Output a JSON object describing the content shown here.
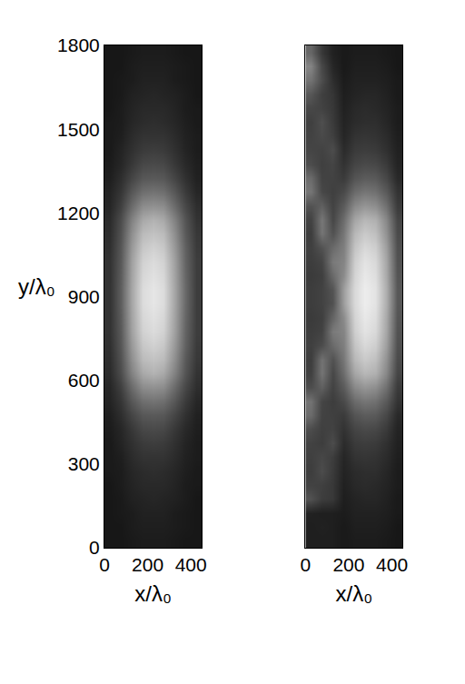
{
  "chart_data": [
    {
      "type": "heatmap",
      "x_label": "x/λ₀",
      "y_label": "y/λ₀",
      "xlim": [
        0,
        450
      ],
      "ylim": [
        0,
        1800
      ],
      "xticks": [
        0,
        200,
        400
      ],
      "yticks": [
        0,
        300,
        600,
        900,
        1200,
        1500,
        1800
      ],
      "zlim": [
        0,
        1
      ],
      "x": [
        25,
        75,
        125,
        175,
        225,
        275,
        325,
        375,
        425
      ],
      "y": [
        25,
        75,
        125,
        175,
        225,
        275,
        325,
        375,
        425,
        475,
        525,
        575,
        625,
        675,
        725,
        775,
        825,
        875,
        925,
        975,
        1025,
        1075,
        1125,
        1175,
        1225,
        1275,
        1325,
        1375,
        1425,
        1475,
        1525,
        1575,
        1625,
        1675,
        1725,
        1775
      ],
      "z": [
        [
          0.09,
          0.09,
          0.1,
          0.11,
          0.11,
          0.11,
          0.1,
          0.09,
          0.09
        ],
        [
          0.09,
          0.09,
          0.11,
          0.12,
          0.12,
          0.12,
          0.11,
          0.1,
          0.09
        ],
        [
          0.09,
          0.1,
          0.11,
          0.13,
          0.13,
          0.13,
          0.11,
          0.1,
          0.09
        ],
        [
          0.09,
          0.1,
          0.13,
          0.14,
          0.15,
          0.14,
          0.13,
          0.11,
          0.09
        ],
        [
          0.09,
          0.11,
          0.14,
          0.16,
          0.16,
          0.16,
          0.14,
          0.11,
          0.1
        ],
        [
          0.1,
          0.11,
          0.15,
          0.17,
          0.18,
          0.17,
          0.15,
          0.12,
          0.1
        ],
        [
          0.1,
          0.12,
          0.17,
          0.2,
          0.2,
          0.2,
          0.17,
          0.13,
          0.11
        ],
        [
          0.1,
          0.14,
          0.19,
          0.23,
          0.24,
          0.23,
          0.19,
          0.14,
          0.11
        ],
        [
          0.11,
          0.15,
          0.22,
          0.28,
          0.29,
          0.28,
          0.22,
          0.16,
          0.12
        ],
        [
          0.12,
          0.18,
          0.27,
          0.34,
          0.35,
          0.34,
          0.27,
          0.19,
          0.13
        ],
        [
          0.14,
          0.21,
          0.34,
          0.43,
          0.45,
          0.43,
          0.34,
          0.23,
          0.15
        ],
        [
          0.15,
          0.25,
          0.42,
          0.55,
          0.57,
          0.55,
          0.42,
          0.28,
          0.18
        ],
        [
          0.17,
          0.3,
          0.51,
          0.66,
          0.7,
          0.66,
          0.51,
          0.33,
          0.2
        ],
        [
          0.18,
          0.32,
          0.56,
          0.73,
          0.76,
          0.73,
          0.56,
          0.35,
          0.22
        ],
        [
          0.19,
          0.34,
          0.6,
          0.78,
          0.82,
          0.78,
          0.6,
          0.38,
          0.23
        ],
        [
          0.2,
          0.35,
          0.63,
          0.82,
          0.86,
          0.82,
          0.63,
          0.39,
          0.24
        ],
        [
          0.2,
          0.36,
          0.64,
          0.84,
          0.88,
          0.84,
          0.64,
          0.4,
          0.24
        ],
        [
          0.2,
          0.37,
          0.65,
          0.86,
          0.9,
          0.86,
          0.65,
          0.41,
          0.24
        ],
        [
          0.2,
          0.37,
          0.65,
          0.86,
          0.9,
          0.86,
          0.65,
          0.41,
          0.24
        ],
        [
          0.2,
          0.36,
          0.64,
          0.84,
          0.88,
          0.84,
          0.64,
          0.4,
          0.24
        ],
        [
          0.2,
          0.35,
          0.63,
          0.82,
          0.86,
          0.82,
          0.63,
          0.39,
          0.24
        ],
        [
          0.19,
          0.34,
          0.6,
          0.78,
          0.82,
          0.78,
          0.6,
          0.38,
          0.23
        ],
        [
          0.18,
          0.32,
          0.56,
          0.73,
          0.76,
          0.73,
          0.56,
          0.35,
          0.22
        ],
        [
          0.17,
          0.3,
          0.51,
          0.66,
          0.7,
          0.66,
          0.51,
          0.33,
          0.2
        ],
        [
          0.15,
          0.25,
          0.42,
          0.55,
          0.57,
          0.55,
          0.42,
          0.28,
          0.18
        ],
        [
          0.14,
          0.21,
          0.34,
          0.43,
          0.45,
          0.43,
          0.34,
          0.23,
          0.15
        ],
        [
          0.12,
          0.18,
          0.27,
          0.34,
          0.35,
          0.34,
          0.27,
          0.19,
          0.13
        ],
        [
          0.11,
          0.15,
          0.22,
          0.28,
          0.29,
          0.28,
          0.22,
          0.16,
          0.12
        ],
        [
          0.1,
          0.14,
          0.19,
          0.23,
          0.24,
          0.23,
          0.19,
          0.14,
          0.11
        ],
        [
          0.1,
          0.12,
          0.17,
          0.2,
          0.2,
          0.2,
          0.17,
          0.13,
          0.11
        ],
        [
          0.1,
          0.11,
          0.15,
          0.17,
          0.18,
          0.17,
          0.15,
          0.12,
          0.1
        ],
        [
          0.09,
          0.11,
          0.14,
          0.16,
          0.16,
          0.16,
          0.14,
          0.11,
          0.1
        ],
        [
          0.09,
          0.1,
          0.13,
          0.14,
          0.15,
          0.14,
          0.13,
          0.11,
          0.09
        ],
        [
          0.09,
          0.1,
          0.11,
          0.13,
          0.13,
          0.13,
          0.11,
          0.1,
          0.09
        ],
        [
          0.09,
          0.09,
          0.11,
          0.12,
          0.12,
          0.12,
          0.11,
          0.1,
          0.09
        ],
        [
          0.09,
          0.09,
          0.1,
          0.11,
          0.11,
          0.11,
          0.1,
          0.09,
          0.09
        ]
      ]
    },
    {
      "type": "heatmap",
      "x_label": "x/λ₀",
      "tick_labels": "x",
      "xlim": [
        0,
        450
      ],
      "ylim": [
        0,
        1800
      ],
      "xticks": [
        0,
        200,
        400
      ],
      "zlim": [
        0,
        1
      ],
      "x": [
        25,
        75,
        125,
        175,
        225,
        275,
        325,
        375,
        425
      ],
      "y": [
        25,
        75,
        125,
        175,
        225,
        275,
        325,
        375,
        425,
        475,
        525,
        575,
        625,
        675,
        725,
        775,
        825,
        875,
        925,
        975,
        1025,
        1075,
        1125,
        1175,
        1225,
        1275,
        1325,
        1375,
        1425,
        1475,
        1525,
        1575,
        1625,
        1675,
        1725,
        1775
      ],
      "z": [
        [
          0.12,
          0.12,
          0.12,
          0.1,
          0.11,
          0.11,
          0.11,
          0.1,
          0.09
        ],
        [
          0.12,
          0.13,
          0.12,
          0.1,
          0.12,
          0.12,
          0.12,
          0.11,
          0.09
        ],
        [
          0.13,
          0.12,
          0.12,
          0.11,
          0.13,
          0.13,
          0.13,
          0.12,
          0.1
        ],
        [
          0.32,
          0.24,
          0.22,
          0.12,
          0.14,
          0.15,
          0.15,
          0.13,
          0.1
        ],
        [
          0.26,
          0.25,
          0.22,
          0.13,
          0.16,
          0.17,
          0.16,
          0.14,
          0.11
        ],
        [
          0.24,
          0.3,
          0.23,
          0.14,
          0.17,
          0.18,
          0.18,
          0.15,
          0.11
        ],
        [
          0.25,
          0.28,
          0.24,
          0.15,
          0.2,
          0.21,
          0.2,
          0.17,
          0.12
        ],
        [
          0.26,
          0.24,
          0.3,
          0.17,
          0.23,
          0.24,
          0.23,
          0.19,
          0.13
        ],
        [
          0.3,
          0.25,
          0.26,
          0.2,
          0.27,
          0.29,
          0.28,
          0.23,
          0.14
        ],
        [
          0.42,
          0.26,
          0.25,
          0.23,
          0.33,
          0.36,
          0.35,
          0.28,
          0.16
        ],
        [
          0.45,
          0.27,
          0.24,
          0.29,
          0.42,
          0.46,
          0.44,
          0.35,
          0.2
        ],
        [
          0.3,
          0.38,
          0.26,
          0.36,
          0.54,
          0.59,
          0.56,
          0.44,
          0.23
        ],
        [
          0.25,
          0.46,
          0.28,
          0.43,
          0.65,
          0.72,
          0.69,
          0.53,
          0.27
        ],
        [
          0.24,
          0.45,
          0.32,
          0.47,
          0.72,
          0.79,
          0.75,
          0.57,
          0.29
        ],
        [
          0.25,
          0.3,
          0.42,
          0.5,
          0.77,
          0.85,
          0.81,
          0.62,
          0.31
        ],
        [
          0.24,
          0.26,
          0.48,
          0.52,
          0.81,
          0.89,
          0.85,
          0.65,
          0.32
        ],
        [
          0.23,
          0.25,
          0.4,
          0.55,
          0.83,
          0.91,
          0.87,
          0.66,
          0.33
        ],
        [
          0.24,
          0.26,
          0.32,
          0.62,
          0.85,
          0.93,
          0.89,
          0.68,
          0.34
        ],
        [
          0.24,
          0.26,
          0.33,
          0.62,
          0.85,
          0.93,
          0.89,
          0.68,
          0.34
        ],
        [
          0.23,
          0.25,
          0.42,
          0.55,
          0.83,
          0.91,
          0.87,
          0.66,
          0.33
        ],
        [
          0.24,
          0.27,
          0.48,
          0.52,
          0.81,
          0.89,
          0.85,
          0.65,
          0.32
        ],
        [
          0.25,
          0.32,
          0.42,
          0.5,
          0.77,
          0.85,
          0.81,
          0.62,
          0.31
        ],
        [
          0.24,
          0.46,
          0.32,
          0.47,
          0.72,
          0.79,
          0.75,
          0.57,
          0.29
        ],
        [
          0.26,
          0.47,
          0.28,
          0.43,
          0.65,
          0.72,
          0.69,
          0.53,
          0.27
        ],
        [
          0.32,
          0.38,
          0.26,
          0.36,
          0.54,
          0.59,
          0.56,
          0.44,
          0.23
        ],
        [
          0.46,
          0.28,
          0.25,
          0.29,
          0.42,
          0.46,
          0.44,
          0.35,
          0.2
        ],
        [
          0.42,
          0.26,
          0.26,
          0.23,
          0.33,
          0.36,
          0.35,
          0.28,
          0.16
        ],
        [
          0.3,
          0.25,
          0.27,
          0.2,
          0.27,
          0.29,
          0.28,
          0.23,
          0.14
        ],
        [
          0.27,
          0.26,
          0.3,
          0.17,
          0.23,
          0.24,
          0.23,
          0.19,
          0.13
        ],
        [
          0.26,
          0.29,
          0.25,
          0.15,
          0.2,
          0.21,
          0.2,
          0.17,
          0.12
        ],
        [
          0.25,
          0.31,
          0.23,
          0.14,
          0.17,
          0.18,
          0.18,
          0.15,
          0.11
        ],
        [
          0.28,
          0.26,
          0.22,
          0.13,
          0.16,
          0.17,
          0.16,
          0.14,
          0.11
        ],
        [
          0.34,
          0.25,
          0.21,
          0.12,
          0.14,
          0.15,
          0.15,
          0.13,
          0.1
        ],
        [
          0.45,
          0.3,
          0.18,
          0.11,
          0.13,
          0.13,
          0.13,
          0.12,
          0.1
        ],
        [
          0.52,
          0.28,
          0.15,
          0.1,
          0.12,
          0.12,
          0.12,
          0.11,
          0.09
        ],
        [
          0.4,
          0.22,
          0.13,
          0.1,
          0.11,
          0.11,
          0.11,
          0.1,
          0.09
        ]
      ]
    }
  ]
}
